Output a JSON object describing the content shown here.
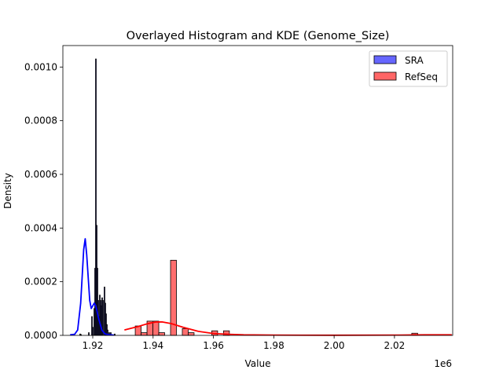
{
  "chart_data": {
    "type": "histogram+kde",
    "title": "Overlayed Histogram and KDE (Genome_Size)",
    "xlabel": "Value",
    "ylabel": "Density",
    "x_offset_text": "1e6",
    "xlim": [
      1.9101,
      2.0393
    ],
    "ylim": [
      0,
      0.00108
    ],
    "xticks": [
      1.92,
      1.94,
      1.96,
      1.98,
      2.0,
      2.02
    ],
    "xtick_labels": [
      "1.92",
      "1.94",
      "1.96",
      "1.98",
      "2.00",
      "2.02"
    ],
    "yticks": [
      0,
      0.0002,
      0.0004,
      0.0006,
      0.0008,
      0.001
    ],
    "ytick_labels": [
      "0.0000",
      "0.0002",
      "0.0004",
      "0.0006",
      "0.0008",
      "0.0010"
    ],
    "grid": false,
    "legend_position": "top-right",
    "series": [
      {
        "name": "SRA",
        "color": "#6666ff",
        "kde_color": "#0000ff",
        "bin_width": 0.00026,
        "bins": [
          [
            1.91584,
            5e-06
          ],
          [
            1.9161,
            3e-06
          ],
          [
            1.9187,
            1e-05
          ],
          [
            1.91974,
            7e-05
          ],
          [
            1.92,
            3e-05
          ],
          [
            1.92052,
            0.0001
          ],
          [
            1.92078,
            0.00025
          ],
          [
            1.92104,
            0.00103
          ],
          [
            1.9213,
            0.00041
          ],
          [
            1.92156,
            0.00025
          ],
          [
            1.92182,
            0.00013
          ],
          [
            1.92208,
            7e-05
          ],
          [
            1.92234,
            0.00015
          ],
          [
            1.9226,
            0.00013
          ],
          [
            1.92286,
            0.00011
          ],
          [
            1.92312,
            0.00014
          ],
          [
            1.92338,
            0.00013
          ],
          [
            1.9239,
            0.00018
          ],
          [
            1.92416,
            0.00012
          ],
          [
            1.92442,
            8e-05
          ],
          [
            1.92468,
            4e-05
          ],
          [
            1.92494,
            2e-05
          ],
          [
            1.92546,
            1e-05
          ],
          [
            1.92598,
            1e-05
          ],
          [
            1.92728,
            5e-06
          ]
        ],
        "kde": [
          [
            1.9125,
            2e-06
          ],
          [
            1.914,
            4e-06
          ],
          [
            1.915,
            2e-05
          ],
          [
            1.916,
            0.00012
          ],
          [
            1.917,
            0.00032
          ],
          [
            1.9175,
            0.00036
          ],
          [
            1.918,
            0.0003
          ],
          [
            1.919,
            0.00013
          ],
          [
            1.9195,
            0.0001
          ],
          [
            1.92,
            0.00011
          ],
          [
            1.9205,
            0.00012
          ],
          [
            1.921,
            0.00011
          ],
          [
            1.922,
            6e-05
          ],
          [
            1.923,
            2e-05
          ],
          [
            1.924,
            6e-06
          ],
          [
            1.925,
            3e-06
          ],
          [
            1.927,
            1e-06
          ]
        ]
      },
      {
        "name": "RefSeq",
        "color": "#ff6666",
        "kde_color": "#ff0000",
        "bin_width": 0.00195,
        "bins": [
          [
            1.93506,
            3.5e-05
          ],
          [
            1.93701,
            1e-05
          ],
          [
            1.93896,
            5.3e-05
          ],
          [
            1.94091,
            5.3e-05
          ],
          [
            1.94286,
            1e-05
          ],
          [
            1.94676,
            0.00028
          ],
          [
            1.95066,
            2.5e-05
          ],
          [
            1.95261,
            1e-05
          ],
          [
            1.96041,
            1.7e-05
          ],
          [
            1.96431,
            1.7e-05
          ],
          [
            2.02671,
            8e-06
          ]
        ],
        "kde": [
          [
            1.9305,
            2e-05
          ],
          [
            1.935,
            3.3e-05
          ],
          [
            1.938,
            4.3e-05
          ],
          [
            1.941,
            5e-05
          ],
          [
            1.943,
            5e-05
          ],
          [
            1.946,
            4.4e-05
          ],
          [
            1.95,
            3e-05
          ],
          [
            1.955,
            1.5e-05
          ],
          [
            1.96,
            7e-06
          ],
          [
            1.965,
            4e-06
          ],
          [
            1.97,
            2e-06
          ],
          [
            1.98,
            1e-06
          ],
          [
            2.0,
            5e-07
          ],
          [
            2.02,
            1e-06
          ],
          [
            2.03,
            2e-06
          ],
          [
            2.039,
            2e-06
          ]
        ]
      }
    ]
  }
}
